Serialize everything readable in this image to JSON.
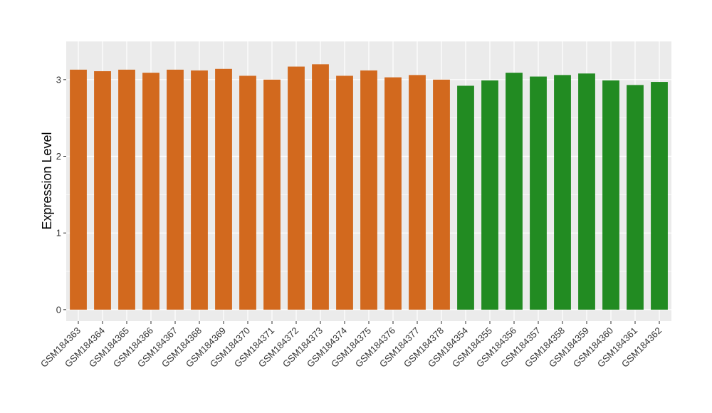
{
  "chart_data": {
    "type": "bar",
    "title": "",
    "xlabel": "",
    "ylabel": "Expression Level",
    "ylim": [
      -0.15,
      3.5
    ],
    "yticks": [
      0,
      1,
      2,
      3
    ],
    "grid": true,
    "legend": "none",
    "categories": [
      "GSM184363",
      "GSM184364",
      "GSM184365",
      "GSM184366",
      "GSM184367",
      "GSM184368",
      "GSM184369",
      "GSM184370",
      "GSM184371",
      "GSM184372",
      "GSM184373",
      "GSM184374",
      "GSM184375",
      "GSM184376",
      "GSM184377",
      "GSM184378",
      "GSM184354",
      "GSM184355",
      "GSM184356",
      "GSM184357",
      "GSM184358",
      "GSM184359",
      "GSM184360",
      "GSM184361",
      "GSM184362"
    ],
    "values": [
      3.13,
      3.11,
      3.13,
      3.09,
      3.13,
      3.12,
      3.14,
      3.05,
      3.0,
      3.17,
      3.2,
      3.05,
      3.12,
      3.03,
      3.06,
      3.0,
      2.92,
      2.99,
      3.09,
      3.04,
      3.06,
      3.08,
      2.99,
      2.93,
      2.97
    ],
    "bar_colors": [
      "#d2691e",
      "#d2691e",
      "#d2691e",
      "#d2691e",
      "#d2691e",
      "#d2691e",
      "#d2691e",
      "#d2691e",
      "#d2691e",
      "#d2691e",
      "#d2691e",
      "#d2691e",
      "#d2691e",
      "#d2691e",
      "#d2691e",
      "#d2691e",
      "#228b22",
      "#228b22",
      "#228b22",
      "#228b22",
      "#228b22",
      "#228b22",
      "#228b22",
      "#228b22",
      "#228b22"
    ],
    "panel_background": "#ebebeb",
    "gridline_color": "#ffffff"
  }
}
